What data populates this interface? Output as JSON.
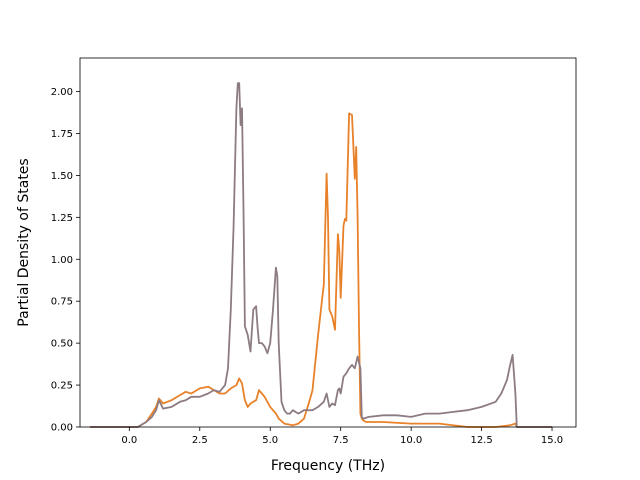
{
  "chart_data": {
    "type": "line",
    "title": "",
    "xlabel": "Frequency (THz)",
    "ylabel": "Partial Density of States",
    "xlim": [
      -1.75,
      15.85
    ],
    "ylim": [
      0.0,
      2.2
    ],
    "xticks": [
      0.0,
      2.5,
      5.0,
      7.5,
      10.0,
      12.5,
      15.0
    ],
    "xtick_labels": [
      "0.0",
      "2.5",
      "5.0",
      "7.5",
      "10.0",
      "12.5",
      "15.0"
    ],
    "yticks": [
      0.0,
      0.25,
      0.5,
      0.75,
      1.0,
      1.25,
      1.5,
      1.75,
      2.0
    ],
    "ytick_labels": [
      "0.00",
      "0.25",
      "0.50",
      "0.75",
      "1.00",
      "1.25",
      "1.50",
      "1.75",
      "2.00"
    ],
    "grid": false,
    "legend": "none",
    "series": [
      {
        "color": "#e8822a",
        "x": [
          -1.4,
          0.0,
          0.3,
          0.6,
          0.8,
          0.95,
          1.05,
          1.2,
          1.5,
          1.8,
          2.0,
          2.2,
          2.5,
          2.8,
          3.0,
          3.2,
          3.4,
          3.6,
          3.8,
          3.9,
          4.0,
          4.1,
          4.2,
          4.3,
          4.5,
          4.6,
          4.7,
          4.8,
          5.0,
          5.2,
          5.3,
          5.5,
          5.8,
          6.0,
          6.2,
          6.4,
          6.5,
          6.7,
          6.9,
          7.0,
          7.05,
          7.1,
          7.2,
          7.3,
          7.4,
          7.45,
          7.5,
          7.6,
          7.65,
          7.7,
          7.8,
          7.9,
          8.0,
          8.05,
          8.1,
          8.15,
          8.2,
          8.25,
          8.3,
          8.4,
          8.5,
          9.0,
          10.0,
          11.0,
          12.0,
          13.0,
          13.5,
          13.7,
          13.75,
          15.0
        ],
        "y": [
          0.0,
          0.0,
          0.0,
          0.03,
          0.08,
          0.12,
          0.17,
          0.14,
          0.16,
          0.19,
          0.21,
          0.2,
          0.23,
          0.24,
          0.22,
          0.2,
          0.2,
          0.23,
          0.25,
          0.29,
          0.26,
          0.16,
          0.12,
          0.14,
          0.16,
          0.22,
          0.2,
          0.18,
          0.12,
          0.08,
          0.05,
          0.02,
          0.01,
          0.02,
          0.05,
          0.16,
          0.22,
          0.55,
          0.85,
          1.51,
          1.25,
          0.7,
          0.66,
          0.58,
          1.15,
          1.05,
          0.77,
          1.2,
          1.24,
          1.23,
          1.87,
          1.86,
          1.48,
          1.67,
          1.25,
          0.6,
          0.08,
          0.05,
          0.04,
          0.03,
          0.03,
          0.03,
          0.02,
          0.02,
          0.0,
          0.0,
          0.01,
          0.02,
          0.0,
          0.0
        ]
      },
      {
        "color": "#8c7b83",
        "x": [
          -1.4,
          0.0,
          0.3,
          0.6,
          0.8,
          0.95,
          1.05,
          1.2,
          1.5,
          1.8,
          2.0,
          2.2,
          2.5,
          2.8,
          3.0,
          3.2,
          3.4,
          3.5,
          3.6,
          3.7,
          3.8,
          3.85,
          3.9,
          3.95,
          4.0,
          4.05,
          4.1,
          4.2,
          4.3,
          4.4,
          4.5,
          4.55,
          4.6,
          4.7,
          4.8,
          4.9,
          5.0,
          5.1,
          5.2,
          5.25,
          5.3,
          5.4,
          5.5,
          5.6,
          5.7,
          5.8,
          6.0,
          6.2,
          6.5,
          6.7,
          6.9,
          7.0,
          7.1,
          7.2,
          7.3,
          7.4,
          7.45,
          7.5,
          7.6,
          7.7,
          7.8,
          7.9,
          8.0,
          8.1,
          8.2,
          8.25,
          8.3,
          8.5,
          9.0,
          9.5,
          10.0,
          10.5,
          11.0,
          11.5,
          12.0,
          12.5,
          13.0,
          13.2,
          13.4,
          13.5,
          13.6,
          13.7,
          13.75,
          15.0
        ],
        "y": [
          0.0,
          0.0,
          0.0,
          0.03,
          0.06,
          0.1,
          0.16,
          0.11,
          0.12,
          0.15,
          0.16,
          0.18,
          0.18,
          0.2,
          0.22,
          0.21,
          0.25,
          0.35,
          0.7,
          1.2,
          1.9,
          2.05,
          2.05,
          1.8,
          1.9,
          1.3,
          0.6,
          0.55,
          0.45,
          0.7,
          0.72,
          0.6,
          0.5,
          0.5,
          0.48,
          0.44,
          0.5,
          0.7,
          0.95,
          0.9,
          0.5,
          0.15,
          0.1,
          0.08,
          0.08,
          0.1,
          0.08,
          0.1,
          0.1,
          0.12,
          0.15,
          0.2,
          0.12,
          0.14,
          0.13,
          0.22,
          0.23,
          0.2,
          0.3,
          0.32,
          0.35,
          0.37,
          0.35,
          0.42,
          0.35,
          0.06,
          0.05,
          0.06,
          0.07,
          0.07,
          0.06,
          0.08,
          0.08,
          0.09,
          0.1,
          0.12,
          0.15,
          0.2,
          0.28,
          0.36,
          0.43,
          0.2,
          0.0,
          0.0
        ]
      }
    ]
  }
}
